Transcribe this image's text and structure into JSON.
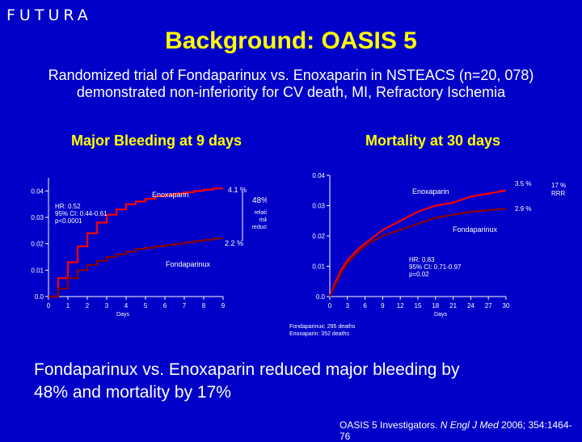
{
  "brand": {
    "logo_text": "FUTURA"
  },
  "slide": {
    "title": "Background: OASIS 5",
    "subtitle_line1": "Randomized  trial of Fondaparinux vs. Enoxaparin in NSTEACS (n=20, 078)",
    "subtitle_line2": "demonstrated non-inferiority for CV death, MI, Refractory Ischemia",
    "conclusion_line1": "Fondaparinux vs. Enoxaparin reduced major bleeding by",
    "conclusion_line2": "48% and mortality by 17%",
    "citation_prefix": "OASIS 5 Investigators. ",
    "citation_journal": "N Engl J Med",
    "citation_suffix": " 2006; 354:1464-76"
  },
  "colors": {
    "background": "#0000c8",
    "title": "#ffff00",
    "text": "#ffffff",
    "enoxaparin": "#ff0000",
    "fondaparinux": "#8b0000",
    "axis": "#ffffff"
  },
  "chart_data": [
    {
      "type": "line",
      "title": "Major Bleeding at 9 days",
      "xlabel": "Days",
      "ylabel": "",
      "x_ticks": [
        "0",
        "1",
        "2",
        "3",
        "4",
        "5",
        "6",
        "7",
        "8",
        "9"
      ],
      "y_ticks": [
        "0.0",
        "0.01",
        "0.02",
        "0.03",
        "0.04"
      ],
      "xlim": [
        0,
        9
      ],
      "ylim": [
        0,
        0.045
      ],
      "series": [
        {
          "name": "Enoxaparin",
          "color": "#ff0000",
          "x": [
            0,
            0.5,
            1,
            1.5,
            2,
            2.5,
            3,
            3.5,
            4,
            4.5,
            5,
            5.5,
            6,
            6.5,
            7,
            7.5,
            8,
            8.5,
            9
          ],
          "y": [
            0,
            0.007,
            0.013,
            0.019,
            0.024,
            0.028,
            0.031,
            0.033,
            0.035,
            0.036,
            0.037,
            0.038,
            0.0385,
            0.039,
            0.0395,
            0.04,
            0.0405,
            0.041,
            0.041
          ]
        },
        {
          "name": "Fondaparinux",
          "color": "#8b0000",
          "x": [
            0,
            0.5,
            1,
            1.5,
            2,
            2.5,
            3,
            3.5,
            4,
            4.5,
            5,
            5.5,
            6,
            6.5,
            7,
            7.5,
            8,
            8.5,
            9
          ],
          "y": [
            0,
            0.003,
            0.007,
            0.01,
            0.012,
            0.0135,
            0.015,
            0.016,
            0.017,
            0.018,
            0.0185,
            0.019,
            0.0195,
            0.02,
            0.0205,
            0.021,
            0.0215,
            0.022,
            0.022
          ]
        }
      ],
      "annotations": {
        "enox_label": "Enoxaparin",
        "fonda_label": "Fondaparinux",
        "enox_end": "4.1 %",
        "fonda_end": "2.2 %",
        "rrr_value": "48%",
        "rrr_line1": "relative",
        "rrr_line2": "risk",
        "rrr_line3": "reduction",
        "stats_line1": "HR: 0.52",
        "stats_line2": "95% CI: 0.44-0.61",
        "stats_line3": "p<0.0001"
      }
    },
    {
      "type": "line",
      "title": "Mortality at 30 days",
      "xlabel": "Days",
      "ylabel": "",
      "x_ticks": [
        "0",
        "3",
        "6",
        "9",
        "12",
        "15",
        "18",
        "21",
        "24",
        "27",
        "30"
      ],
      "y_ticks": [
        "0.0",
        "0.01",
        "0.02",
        "0.03",
        "0.04"
      ],
      "xlim": [
        0,
        30
      ],
      "ylim": [
        0,
        0.04
      ],
      "series": [
        {
          "name": "Enoxaparin",
          "color": "#ff0000",
          "x": [
            0,
            1,
            2,
            3,
            5,
            7,
            9,
            12,
            15,
            18,
            21,
            24,
            27,
            30
          ],
          "y": [
            0,
            0.005,
            0.009,
            0.012,
            0.016,
            0.019,
            0.022,
            0.025,
            0.028,
            0.03,
            0.031,
            0.033,
            0.034,
            0.035
          ]
        },
        {
          "name": "Fondaparinux",
          "color": "#8b0000",
          "x": [
            0,
            1,
            2,
            3,
            5,
            7,
            9,
            12,
            15,
            18,
            21,
            24,
            27,
            30
          ],
          "y": [
            0,
            0.004,
            0.008,
            0.011,
            0.015,
            0.018,
            0.02,
            0.022,
            0.024,
            0.026,
            0.027,
            0.028,
            0.0285,
            0.029
          ]
        }
      ],
      "annotations": {
        "enox_label": "Enoxaparin",
        "fonda_label": "Fondaparinux",
        "enox_end": "3.5 %",
        "fonda_end": "2.9 %",
        "rrr_line1": "17 %",
        "rrr_line2": "RRR",
        "stats_line1": "HR: 0.83",
        "stats_line2": "95% CI: 0.71-0.97",
        "stats_line3": "p=0.02",
        "deaths_line1": "Fondaparinux: 295 deaths",
        "deaths_line2": "Enoxaparin: 352 deaths"
      }
    }
  ]
}
